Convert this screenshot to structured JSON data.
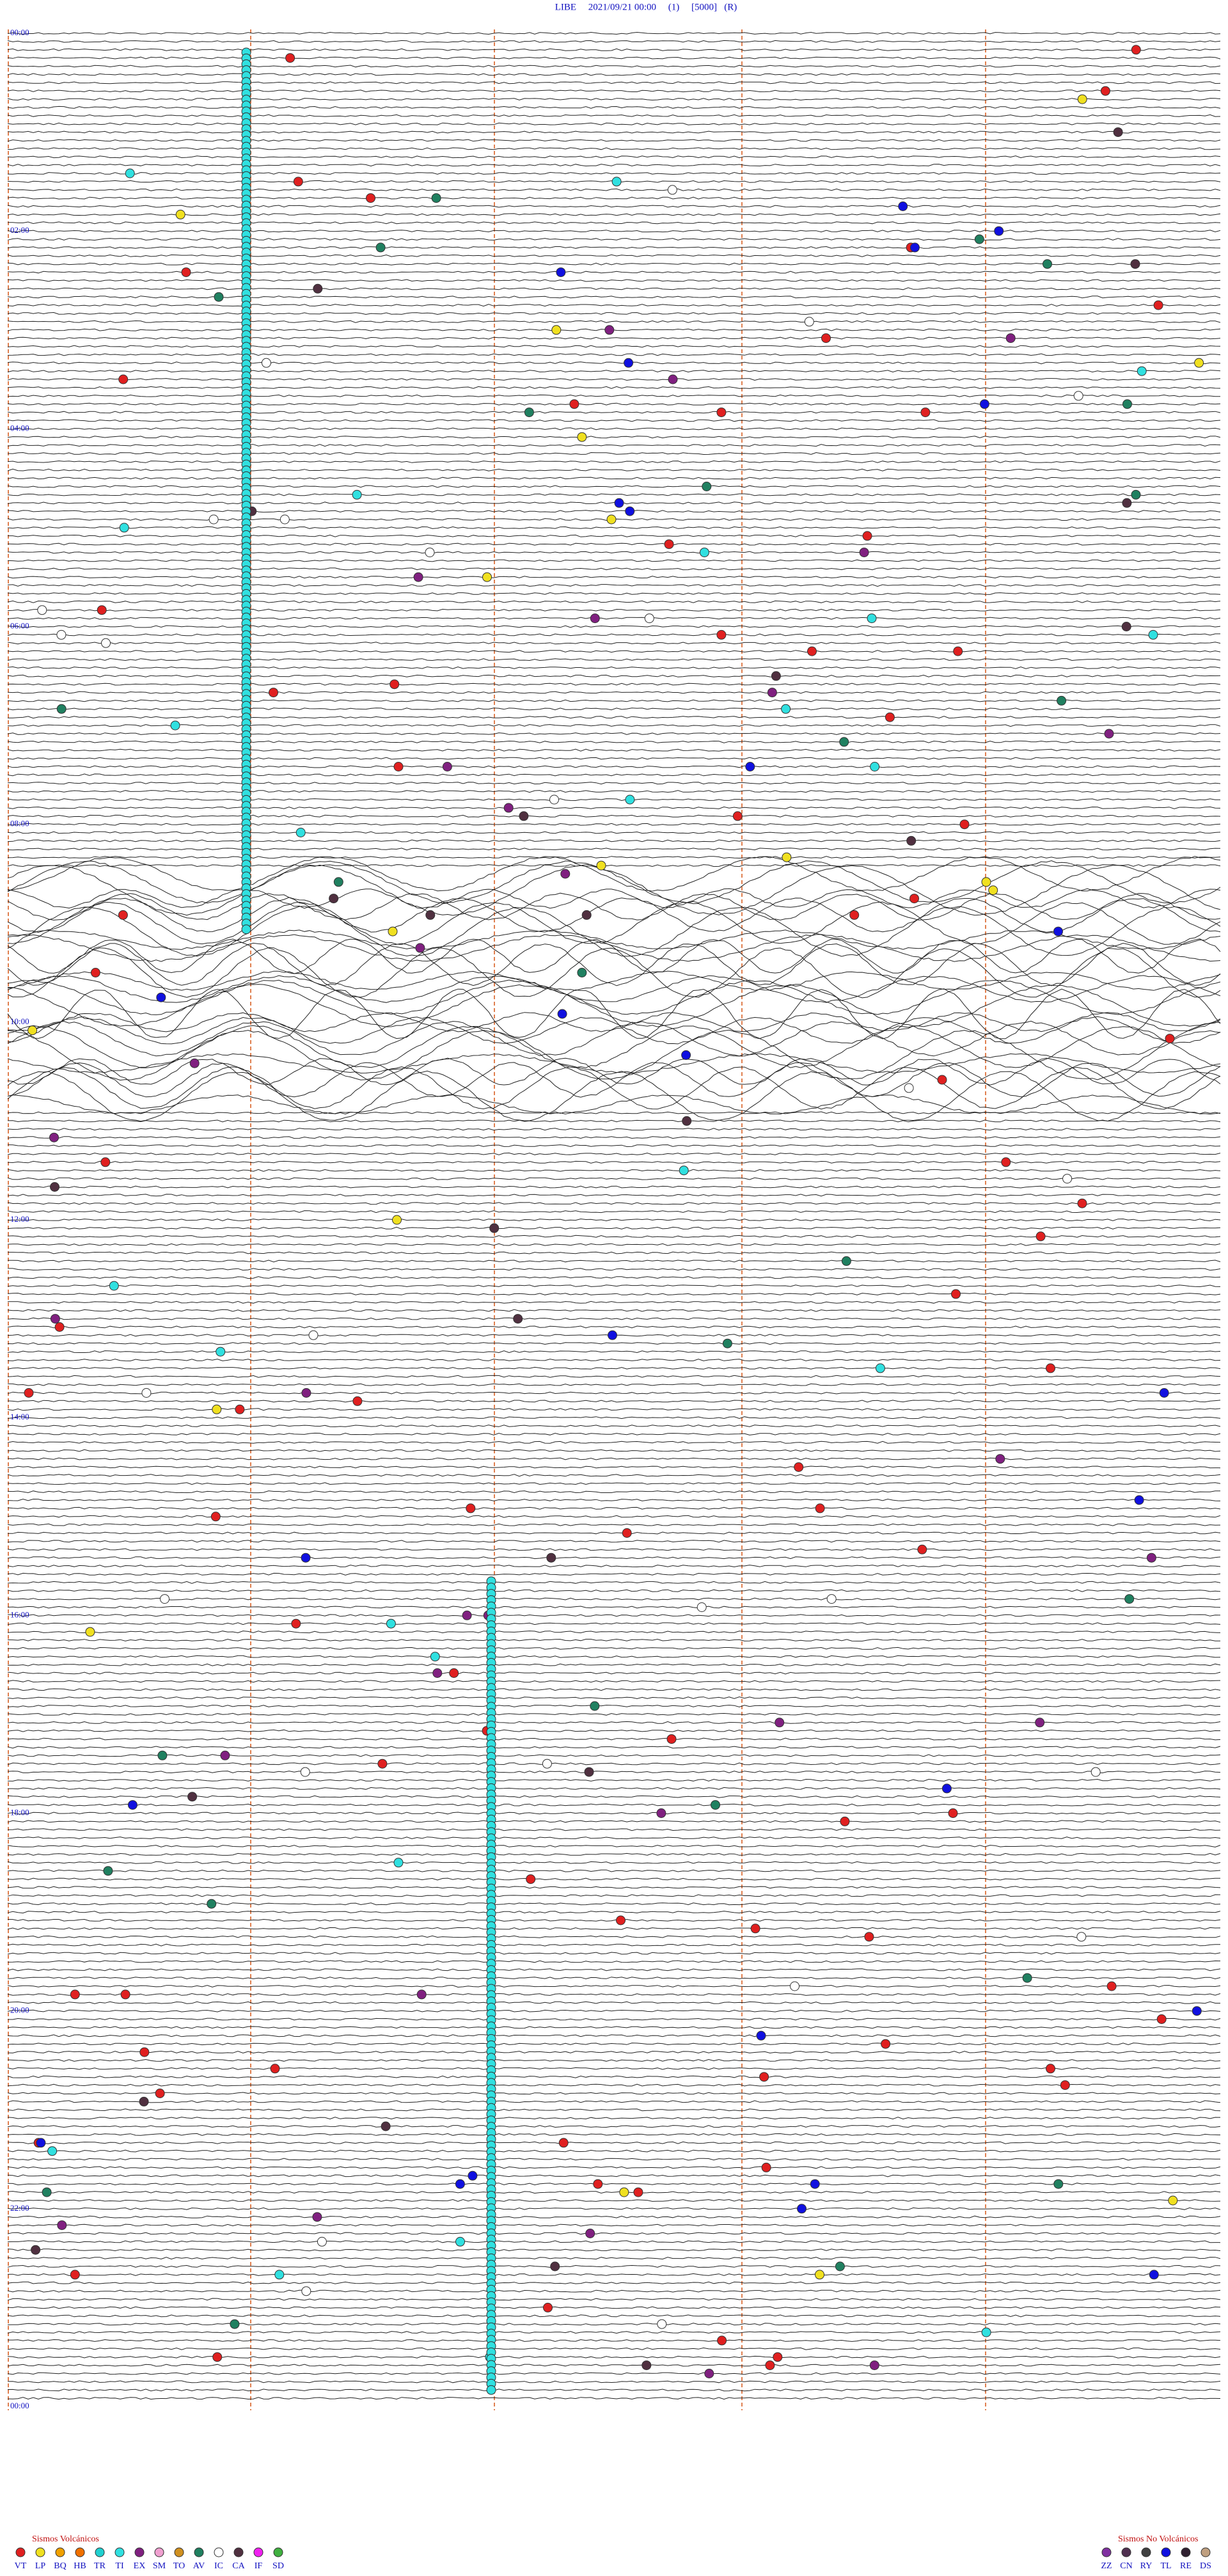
{
  "header": {
    "title": "LIBE     2021/09/21 00:00     (1)     [5000]   (R)"
  },
  "hour_labels": [
    "00:00",
    "02:00",
    "04:00",
    "06:00",
    "08:00",
    "10:00",
    "12:00",
    "14:00",
    "16:00",
    "18:00",
    "20:00",
    "22:00",
    "00:00"
  ],
  "legend": {
    "volcanic": {
      "title": "Sismos Volcánicos",
      "items": [
        {
          "code": "VT",
          "color": "#e02020"
        },
        {
          "code": "LP",
          "color": "#f0e020"
        },
        {
          "code": "BQ",
          "color": "#f0a000"
        },
        {
          "code": "HB",
          "color": "#f07000"
        },
        {
          "code": "TR",
          "color": "#20d0d0"
        },
        {
          "code": "TI",
          "color": "#30e0e0"
        },
        {
          "code": "EX",
          "color": "#802080"
        },
        {
          "code": "SM",
          "color": "#f0a0d0"
        },
        {
          "code": "TO",
          "color": "#d09020"
        },
        {
          "code": "AV",
          "color": "#208060"
        },
        {
          "code": "IC",
          "color": "#ffffff"
        },
        {
          "code": "CA",
          "color": "#503040"
        },
        {
          "code": "IF",
          "color": "#f020f0"
        },
        {
          "code": "SD",
          "color": "#40b040"
        }
      ]
    },
    "non_volcanic": {
      "title": "Sismos No Volcánicos",
      "items": [
        {
          "code": "ZZ",
          "color": "#8030a0"
        },
        {
          "code": "CN",
          "color": "#503050"
        },
        {
          "code": "RY",
          "color": "#404040"
        },
        {
          "code": "TL",
          "color": "#1010e0"
        },
        {
          "code": "RE",
          "color": "#302030"
        },
        {
          "code": "DS",
          "color": "#c0a080"
        }
      ]
    }
  }
}
